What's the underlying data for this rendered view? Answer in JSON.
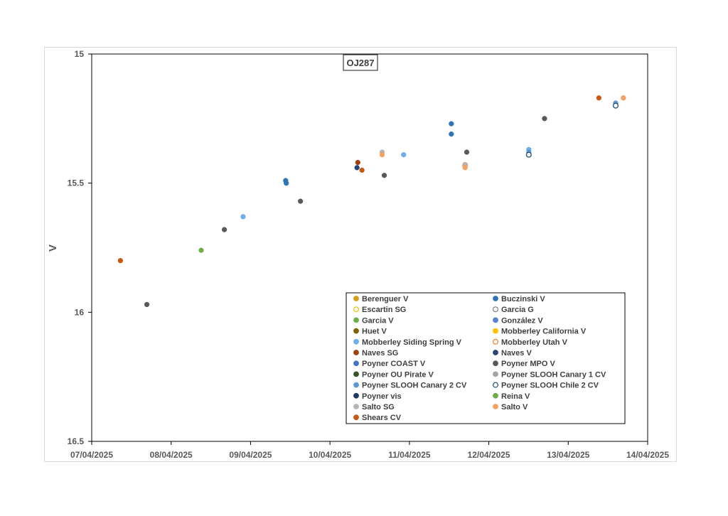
{
  "chart_data": {
    "type": "scatter",
    "title": "OJ287",
    "xlabel": "",
    "ylabel": "V",
    "x_ticks": [
      "07/04/2025",
      "08/04/2025",
      "09/04/2025",
      "10/04/2025",
      "11/04/2025",
      "12/04/2025",
      "13/04/2025",
      "14/04/2025"
    ],
    "y_ticks": [
      "15",
      "15.5",
      "16",
      "16.5"
    ],
    "xlim": [
      "2025-04-07",
      "2025-04-14"
    ],
    "ylim": [
      16.5,
      15
    ],
    "y_reversed": true,
    "grid": false,
    "legend_position": "bottom-right",
    "series": [
      {
        "name": "Berenguer V",
        "color": "#D4A017",
        "marker": "filled",
        "points": []
      },
      {
        "name": "Buczinski V",
        "color": "#2E75B6",
        "marker": "filled",
        "points": [
          {
            "x": "2025-04-09 10:36",
            "y": 15.49
          },
          {
            "x": "2025-04-09 10:48",
            "y": 15.5
          },
          {
            "x": "2025-04-11 12:40",
            "y": 15.27
          },
          {
            "x": "2025-04-11 12:40",
            "y": 15.31
          }
        ]
      },
      {
        "name": "Escartin SG",
        "color": "#F2C200",
        "marker": "open",
        "points": []
      },
      {
        "name": "Garcia G",
        "color": "#7F7F7F",
        "marker": "open",
        "points": []
      },
      {
        "name": "Garcia V",
        "color": "#70AD47",
        "marker": "filled",
        "points": []
      },
      {
        "name": "González V",
        "color": "#5B7FD1",
        "marker": "filled",
        "points": []
      },
      {
        "name": "Huet V",
        "color": "#806000",
        "marker": "filled",
        "points": []
      },
      {
        "name": "Mobberley California V",
        "color": "#FFC000",
        "marker": "filled",
        "points": []
      },
      {
        "name": "Mobberley Siding Spring V",
        "color": "#6FAEE6",
        "marker": "filled",
        "points": [
          {
            "x": "2025-04-08 21:45",
            "y": 15.63
          },
          {
            "x": "2025-04-10 22:15",
            "y": 15.39
          },
          {
            "x": "2025-04-12 12:05",
            "y": 15.37
          }
        ]
      },
      {
        "name": "Mobberley Utah V",
        "color": "#ED7D31",
        "marker": "open",
        "points": [
          {
            "x": "2025-04-11 16:50",
            "y": 15.43
          }
        ]
      },
      {
        "name": "Naves SG",
        "color": "#A0410D",
        "marker": "filled",
        "points": [
          {
            "x": "2025-04-10 08:25",
            "y": 15.42
          }
        ]
      },
      {
        "name": "Naves V",
        "color": "#264478",
        "marker": "filled",
        "points": [
          {
            "x": "2025-04-10 08:10",
            "y": 15.44
          }
        ]
      },
      {
        "name": "Poyner COAST V",
        "color": "#4472C4",
        "marker": "filled",
        "points": []
      },
      {
        "name": "Poyner MPO V",
        "color": "#595959",
        "marker": "filled",
        "points": [
          {
            "x": "2025-04-07 16:40",
            "y": 15.97
          },
          {
            "x": "2025-04-08 16:05",
            "y": 15.68
          },
          {
            "x": "2025-04-09 15:05",
            "y": 15.57
          },
          {
            "x": "2025-04-10 16:25",
            "y": 15.47
          },
          {
            "x": "2025-04-11 17:20",
            "y": 15.38
          },
          {
            "x": "2025-04-12 16:50",
            "y": 15.25
          }
        ]
      },
      {
        "name": "Poyner OU Pirate V",
        "color": "#375623",
        "marker": "filled",
        "points": []
      },
      {
        "name": "Poyner SLOOH Canary 1 CV",
        "color": "#A5A5A5",
        "marker": "filled",
        "points": [
          {
            "x": "2025-04-13 16:40",
            "y": 15.17
          }
        ]
      },
      {
        "name": "Poyner SLOOH Canary 2 CV",
        "color": "#5B9BD5",
        "marker": "filled",
        "points": [
          {
            "x": "2025-04-12 12:05",
            "y": 15.38
          },
          {
            "x": "2025-04-13 14:20",
            "y": 15.19
          }
        ]
      },
      {
        "name": "Poyner SLOOH Chile 2 CV",
        "color": "#1F4E79",
        "marker": "open",
        "points": [
          {
            "x": "2025-04-12 12:05",
            "y": 15.39
          },
          {
            "x": "2025-04-13 14:20",
            "y": 15.2
          }
        ]
      },
      {
        "name": "Poyner vis",
        "color": "#203864",
        "marker": "filled",
        "points": []
      },
      {
        "name": "Reina V",
        "color": "#70AD47",
        "marker": "filled",
        "points": [
          {
            "x": "2025-04-08 09:05",
            "y": 15.76
          }
        ]
      },
      {
        "name": "Salto SG",
        "color": "#B4B4B4",
        "marker": "filled",
        "points": [
          {
            "x": "2025-04-10 15:45",
            "y": 15.38
          },
          {
            "x": "2025-04-11 16:50",
            "y": 15.43
          }
        ]
      },
      {
        "name": "Salto V",
        "color": "#F4A261",
        "marker": "filled",
        "points": [
          {
            "x": "2025-04-10 15:45",
            "y": 15.39
          },
          {
            "x": "2025-04-11 16:50",
            "y": 15.44
          },
          {
            "x": "2025-04-13 16:40",
            "y": 15.17
          }
        ]
      },
      {
        "name": "Shears CV",
        "color": "#C55A11",
        "marker": "filled",
        "points": [
          {
            "x": "2025-04-07 08:40",
            "y": 15.8
          },
          {
            "x": "2025-04-10 09:40",
            "y": 15.45
          },
          {
            "x": "2025-04-13 09:15",
            "y": 15.17
          }
        ]
      }
    ]
  }
}
